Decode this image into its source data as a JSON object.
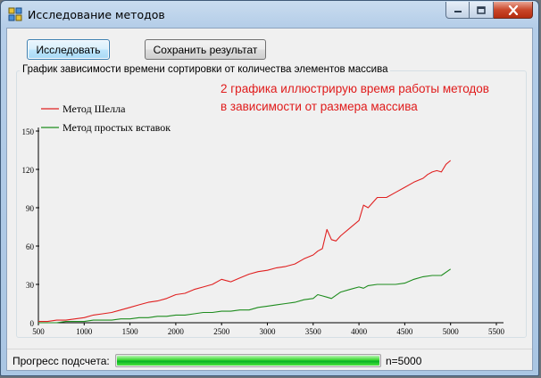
{
  "window": {
    "title": "Исследование методов"
  },
  "toolbar": {
    "investigate_label": "Исследовать",
    "save_label": "Сохранить результат"
  },
  "group": {
    "label": "График зависимости времени сортировки от количества элементов массива"
  },
  "annotation": {
    "line1": "2 графика иллюстрирую время работы методов",
    "line2": "в зависимости от размера массива"
  },
  "status": {
    "progress_label": "Прогресс подсчета:",
    "progress_fraction": 1.0,
    "count_label": "n=5000"
  },
  "colors": {
    "shell": "#e02020",
    "insertion": "#1e8c1e",
    "annotation": "#e01b1b",
    "progress": "#06b025"
  },
  "chart_data": {
    "type": "line",
    "title": "",
    "xlabel": "",
    "ylabel": "",
    "xlim": [
      500,
      5500
    ],
    "ylim": [
      0,
      150
    ],
    "xticks": [
      500,
      1000,
      1500,
      2000,
      2500,
      3000,
      3500,
      4000,
      4500,
      5000,
      5500
    ],
    "yticks": [
      0,
      30,
      60,
      90,
      120,
      150
    ],
    "legend_position": "top-left",
    "grid": false,
    "series": [
      {
        "name": "Метод Шелла",
        "color": "#e02020",
        "x": [
          500,
          600,
          700,
          800,
          900,
          1000,
          1100,
          1200,
          1300,
          1400,
          1500,
          1600,
          1700,
          1800,
          1900,
          2000,
          2100,
          2200,
          2300,
          2400,
          2500,
          2600,
          2700,
          2800,
          2900,
          3000,
          3100,
          3200,
          3300,
          3400,
          3500,
          3550,
          3600,
          3650,
          3700,
          3750,
          3800,
          3900,
          4000,
          4050,
          4100,
          4150,
          4200,
          4300,
          4400,
          4500,
          4600,
          4700,
          4750,
          4800,
          4850,
          4900,
          4950,
          5000
        ],
        "y": [
          1,
          1,
          2,
          2,
          3,
          4,
          6,
          7,
          8,
          10,
          12,
          14,
          16,
          17,
          19,
          22,
          23,
          26,
          28,
          30,
          34,
          32,
          35,
          38,
          40,
          41,
          43,
          44,
          46,
          50,
          53,
          56,
          58,
          73,
          65,
          64,
          68,
          74,
          80,
          92,
          90,
          94,
          98,
          98,
          102,
          106,
          110,
          113,
          116,
          118,
          119,
          118,
          124,
          127
        ]
      },
      {
        "name": "Метод простых вставок",
        "color": "#1e8c1e",
        "x": [
          500,
          600,
          700,
          800,
          900,
          1000,
          1100,
          1200,
          1300,
          1400,
          1500,
          1600,
          1700,
          1800,
          1900,
          2000,
          2100,
          2200,
          2300,
          2400,
          2500,
          2600,
          2700,
          2800,
          2900,
          3000,
          3100,
          3200,
          3300,
          3400,
          3500,
          3550,
          3600,
          3650,
          3700,
          3800,
          3900,
          4000,
          4050,
          4100,
          4200,
          4300,
          4400,
          4500,
          4600,
          4700,
          4800,
          4900,
          5000
        ],
        "y": [
          0,
          0,
          0,
          1,
          1,
          1,
          2,
          2,
          2,
          3,
          3,
          4,
          4,
          5,
          5,
          6,
          6,
          7,
          8,
          8,
          9,
          9,
          10,
          10,
          12,
          13,
          14,
          15,
          16,
          18,
          19,
          22,
          21,
          20,
          19,
          24,
          26,
          28,
          27,
          29,
          30,
          30,
          30,
          31,
          34,
          36,
          37,
          37,
          42
        ]
      }
    ]
  }
}
